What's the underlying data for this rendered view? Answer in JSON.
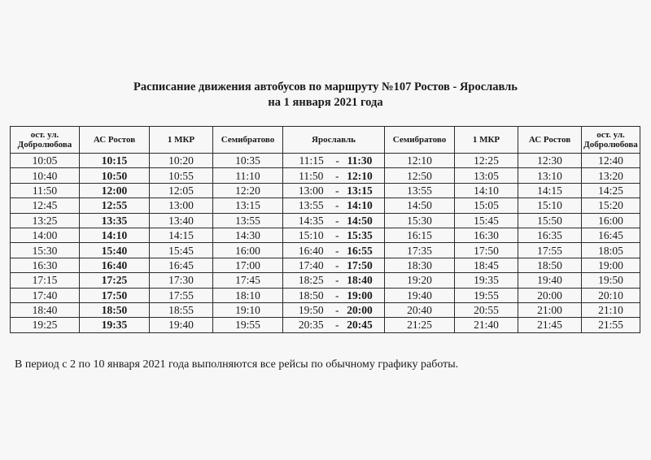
{
  "title": {
    "line1": "Расписание движения автобусов по маршруту №107 Ростов - Ярославль",
    "line2": "на 1 января 2021 года"
  },
  "headers": [
    "ост. ул. Добролюбова",
    "АС Ростов",
    "1 МКР",
    "Семибратово",
    "Ярославль",
    "Семибратово",
    "1 МКР",
    "АС Ростов",
    "ост. ул. Добролюбова"
  ],
  "rows": [
    {
      "c1": "10:05",
      "c2": "10:15",
      "c3": "10:20",
      "c4": "10:35",
      "y_dep": "11:15",
      "y_dash": "-",
      "y_arr": "11:30",
      "c6": "12:10",
      "c7": "12:25",
      "c8": "12:30",
      "c9": "12:40"
    },
    {
      "c1": "10:40",
      "c2": "10:50",
      "c3": "10:55",
      "c4": "11:10",
      "y_dep": "11:50",
      "y_dash": "-",
      "y_arr": "12:10",
      "c6": "12:50",
      "c7": "13:05",
      "c8": "13:10",
      "c9": "13:20"
    },
    {
      "c1": "11:50",
      "c2": "12:00",
      "c3": "12:05",
      "c4": "12:20",
      "y_dep": "13:00",
      "y_dash": "-",
      "y_arr": "13:15",
      "c6": "13:55",
      "c7": "14:10",
      "c8": "14:15",
      "c9": "14:25"
    },
    {
      "c1": "12:45",
      "c2": "12:55",
      "c3": "13:00",
      "c4": "13:15",
      "y_dep": "13:55",
      "y_dash": "-",
      "y_arr": "14:10",
      "c6": "14:50",
      "c7": "15:05",
      "c8": "15:10",
      "c9": "15:20"
    },
    {
      "c1": "13:25",
      "c2": "13:35",
      "c3": "13:40",
      "c4": "13:55",
      "y_dep": "14:35",
      "y_dash": "-",
      "y_arr": "14:50",
      "c6": "15:30",
      "c7": "15:45",
      "c8": "15:50",
      "c9": "16:00"
    },
    {
      "c1": "14:00",
      "c2": "14:10",
      "c3": "14:15",
      "c4": "14:30",
      "y_dep": "15:10",
      "y_dash": "-",
      "y_arr": "15:35",
      "c6": "16:15",
      "c7": "16:30",
      "c8": "16:35",
      "c9": "16:45"
    },
    {
      "c1": "15:30",
      "c2": "15:40",
      "c3": "15:45",
      "c4": "16:00",
      "y_dep": "16:40",
      "y_dash": "-",
      "y_arr": "16:55",
      "c6": "17:35",
      "c7": "17:50",
      "c8": "17:55",
      "c9": "18:05"
    },
    {
      "c1": "16:30",
      "c2": "16:40",
      "c3": "16:45",
      "c4": "17:00",
      "y_dep": "17:40",
      "y_dash": "-",
      "y_arr": "17:50",
      "c6": "18:30",
      "c7": "18:45",
      "c8": "18:50",
      "c9": "19:00"
    },
    {
      "c1": "17:15",
      "c2": "17:25",
      "c3": "17:30",
      "c4": "17:45",
      "y_dep": "18:25",
      "y_dash": "-",
      "y_arr": "18:40",
      "c6": "19:20",
      "c7": "19:35",
      "c8": "19:40",
      "c9": "19:50"
    },
    {
      "c1": "17:40",
      "c2": "17:50",
      "c3": "17:55",
      "c4": "18:10",
      "y_dep": "18:50",
      "y_dash": "-",
      "y_arr": "19:00",
      "c6": "19:40",
      "c7": "19:55",
      "c8": "20:00",
      "c9": "20:10"
    },
    {
      "c1": "18:40",
      "c2": "18:50",
      "c3": "18:55",
      "c4": "19:10",
      "y_dep": "19:50",
      "y_dash": "-",
      "y_arr": "20:00",
      "c6": "20:40",
      "c7": "20:55",
      "c8": "21:00",
      "c9": "21:10"
    },
    {
      "c1": "19:25",
      "c2": "19:35",
      "c3": "19:40",
      "c4": "19:55",
      "y_dep": "20:35",
      "y_dash": "-",
      "y_arr": "20:45",
      "c6": "21:25",
      "c7": "21:40",
      "c8": "21:45",
      "c9": "21:55"
    }
  ],
  "note": "В период с 2 по 10 января 2021 года выполняются все рейсы по обычному графику работы."
}
